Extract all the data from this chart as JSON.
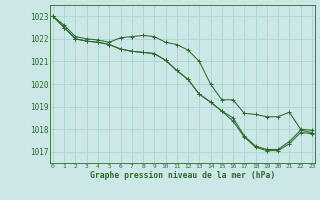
{
  "background_color": "#cce8e6",
  "grid_color": "#aad4d0",
  "line_color": "#2d6b2d",
  "text_color": "#2d6b2d",
  "xlabel": "Graphe pression niveau de la mer (hPa)",
  "ylim": [
    1016.5,
    1023.5
  ],
  "xlim": [
    -0.3,
    23.3
  ],
  "yticks": [
    1017,
    1018,
    1019,
    1020,
    1021,
    1022,
    1023
  ],
  "xticks": [
    0,
    1,
    2,
    3,
    4,
    5,
    6,
    7,
    8,
    9,
    10,
    11,
    12,
    13,
    14,
    15,
    16,
    17,
    18,
    19,
    20,
    21,
    22,
    23
  ],
  "series": [
    [
      1023.0,
      1022.6,
      1022.1,
      1022.0,
      1021.95,
      1021.85,
      1022.05,
      1022.1,
      1022.15,
      1022.1,
      1021.85,
      1021.75,
      1021.5,
      1021.0,
      1020.0,
      1019.3,
      1019.3,
      1018.7,
      1018.65,
      1018.55,
      1018.55,
      1018.75,
      1018.0,
      1017.95
    ],
    [
      1023.0,
      1022.5,
      1022.0,
      1021.9,
      1021.85,
      1021.75,
      1021.55,
      1021.45,
      1021.4,
      1021.35,
      1021.05,
      1020.6,
      1020.2,
      1019.55,
      1019.2,
      1018.8,
      1018.5,
      1017.7,
      1017.25,
      1017.1,
      1017.1,
      1017.45,
      1017.95,
      1017.85
    ],
    [
      1023.0,
      1022.5,
      1022.0,
      1021.9,
      1021.85,
      1021.75,
      1021.55,
      1021.45,
      1021.4,
      1021.35,
      1021.05,
      1020.6,
      1020.2,
      1019.55,
      1019.2,
      1018.8,
      1018.35,
      1017.65,
      1017.2,
      1017.05,
      1017.05,
      1017.35,
      1017.85,
      1017.8
    ]
  ]
}
